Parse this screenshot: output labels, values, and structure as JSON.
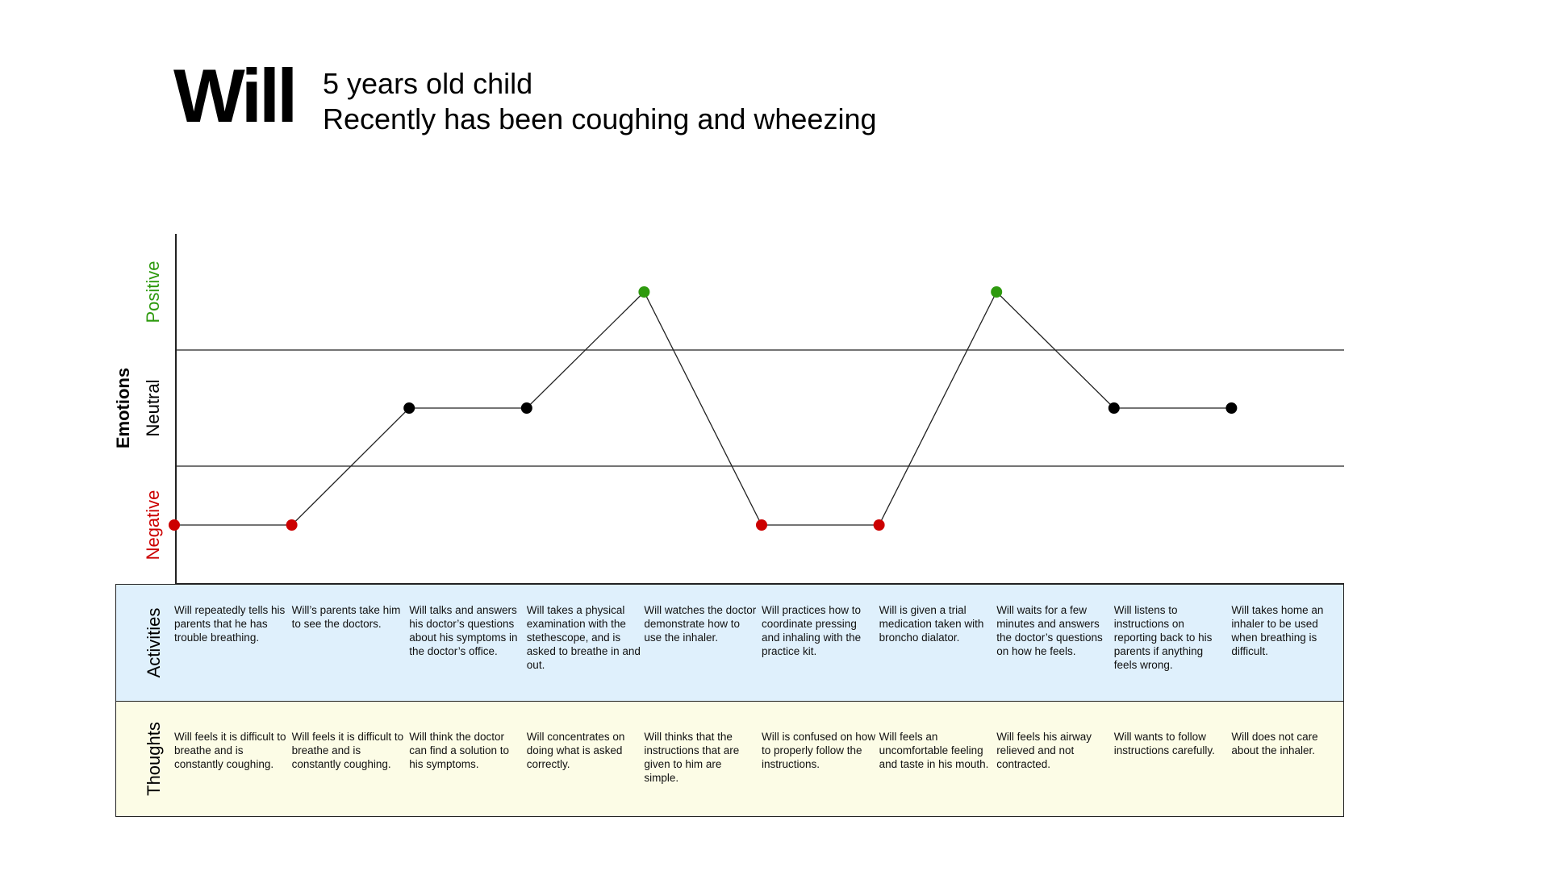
{
  "header": {
    "name": "Will",
    "subtitle_lines": [
      "5 years old child",
      "Recently has been coughing and wheezing"
    ]
  },
  "emotion_axis": {
    "title": "Emotions",
    "levels": [
      "Positive",
      "Neutral",
      "Negative"
    ],
    "level_colors": {
      "Positive": "#2e9a0e",
      "Neutral": "#000000",
      "Negative": "#cc0000"
    }
  },
  "rows": {
    "activities_label": "Activities",
    "thoughts_label": "Thoughts"
  },
  "colors": {
    "activities_bg": "#dff0fc",
    "thoughts_bg": "#fcfce6",
    "line": "#222222"
  },
  "chart_data": {
    "type": "line",
    "x": [
      1,
      2,
      3,
      4,
      5,
      6,
      7,
      8,
      9,
      10
    ],
    "values": [
      "Negative",
      "Negative",
      "Neutral",
      "Neutral",
      "Positive",
      "Negative",
      "Negative",
      "Positive",
      "Neutral",
      "Neutral"
    ],
    "ylabel": "Emotions",
    "y_categories": [
      "Negative",
      "Neutral",
      "Positive"
    ]
  },
  "steps": [
    {
      "activity": "Will repeatedly tells his parents that he has trouble breathing.",
      "thought": "Will feels it is difficult to breathe and is constantly coughing."
    },
    {
      "activity": "Will’s parents take him to see the doctors.",
      "thought": "Will feels it is difficult to breathe and is constantly coughing."
    },
    {
      "activity": "Will talks and answers his doctor’s questions about his symptoms in the doctor’s office.",
      "thought": "Will think the doctor can find a solution to his symptoms."
    },
    {
      "activity": "Will takes a physical examination with the stethescope, and is asked to breathe in and out.",
      "thought": "Will concentrates on doing what is asked correctly."
    },
    {
      "activity": "Will watches the doctor demonstrate how to use the inhaler.",
      "thought": "Will thinks that the instructions that are given to him are simple."
    },
    {
      "activity": "Will practices how to coordinate pressing and inhaling with the practice kit.",
      "thought": "Will is confused on how to properly follow the instructions."
    },
    {
      "activity": "Will is given a trial medication taken with broncho dialator.",
      "thought": "Will feels an uncomfortable feeling and taste in his mouth."
    },
    {
      "activity": "Will waits for a few minutes and answers the doctor’s questions on how he feels.",
      "thought": "Will feels his airway relieved and not contracted."
    },
    {
      "activity": "Will listens to instructions on reporting back to his parents if anything feels wrong.",
      "thought": "Will wants to follow instructions carefully."
    },
    {
      "activity": "Will takes home an inhaler to be used when breathing is difficult.",
      "thought": "Will does not care about the inhaler."
    }
  ]
}
